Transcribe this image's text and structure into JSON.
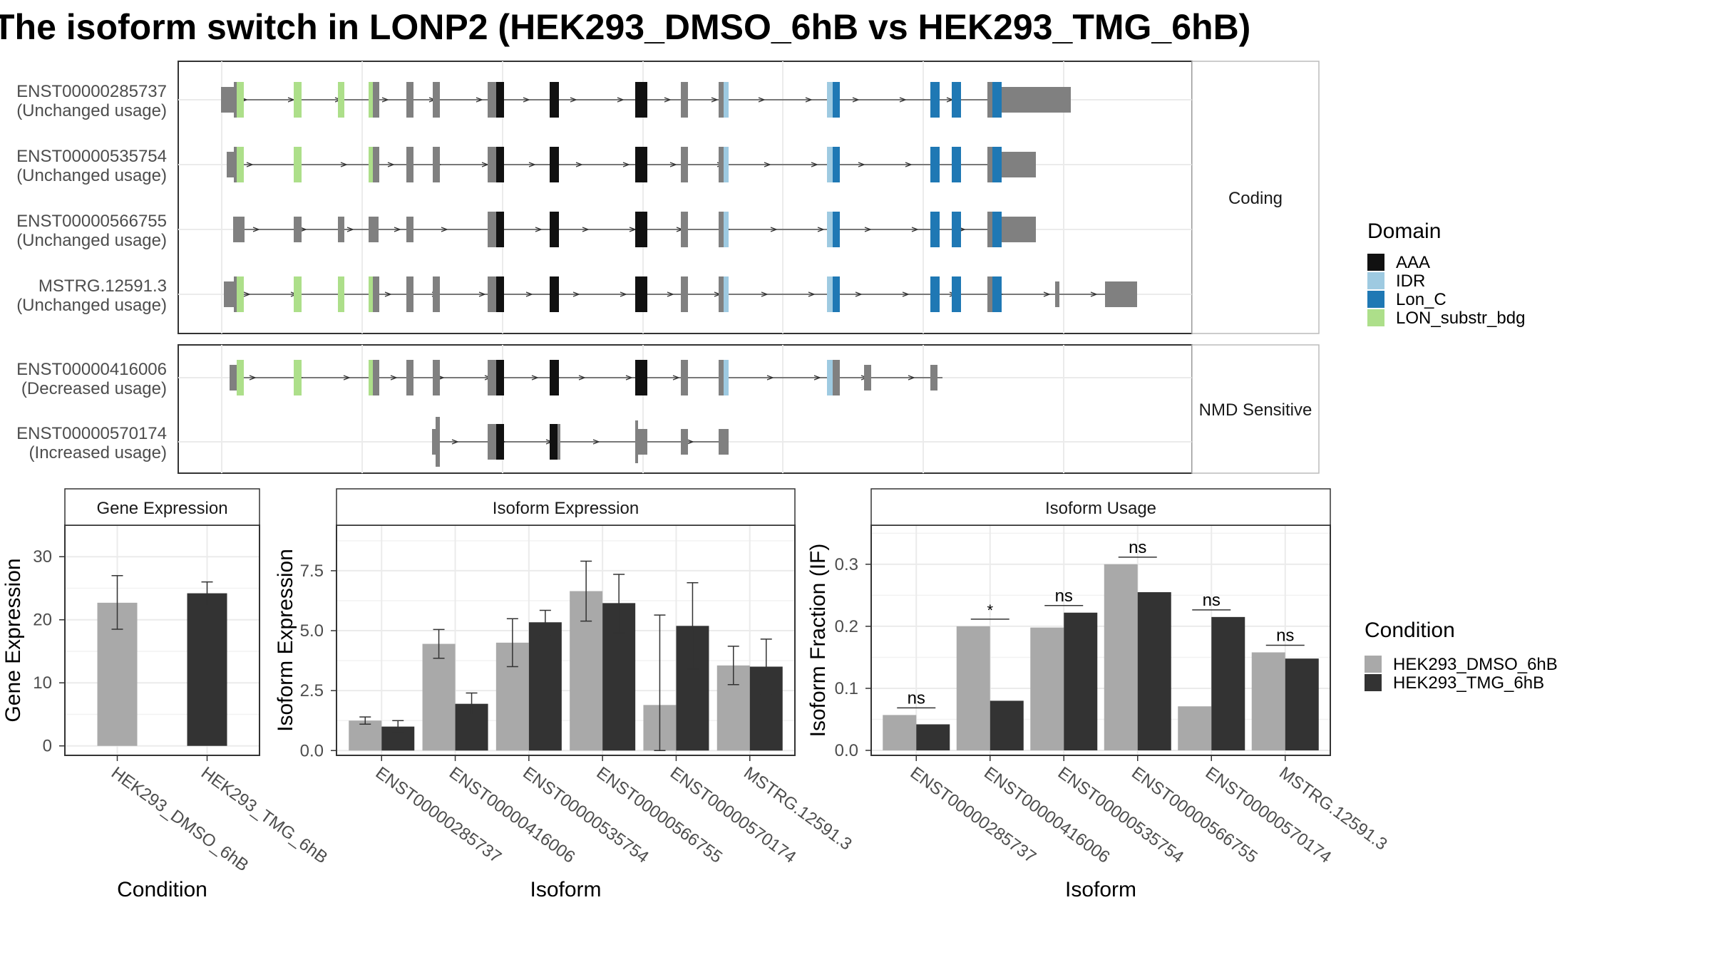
{
  "title": "The isoform switch in LONP2 (HEK293_DMSO_6hB vs HEK293_TMG_6hB)",
  "colors": {
    "AAA": "#111111",
    "IDR": "#9ecae1",
    "Lon_C": "#1f78b4",
    "LON_substr_bdg": "#addf8a",
    "exon": "#808080",
    "DMSO": "#a9a9a9",
    "TMG": "#333333"
  },
  "structure": {
    "panels": [
      {
        "strip": "Coding",
        "isoforms": [
          {
            "id": "ENST00000285737",
            "usage": "(Unchanged usage)",
            "first": "ENST00000285737",
            "first_tall": true,
            "utr3": "u3a"
          },
          {
            "id": "ENST00000535754",
            "usage": "(Unchanged usage)",
            "first": "ENST00000535754",
            "first_tall": true,
            "utr3": "u3b"
          },
          {
            "id": "ENST00000566755",
            "usage": "(Unchanged usage)",
            "first": "ENST00000566755",
            "first_tall": false,
            "utr3": "u3b"
          },
          {
            "id": "MSTRG.12591.3",
            "usage": "(Unchanged usage)",
            "first": "MSTRG.12591.3",
            "first_tall": true,
            "utr3": "u3m"
          }
        ]
      },
      {
        "strip": "NMD Sensitive",
        "isoforms": [
          {
            "id": "ENST00000416006",
            "usage": "(Decreased usage)"
          },
          {
            "id": "ENST00000570174",
            "usage": "(Increased usage)"
          }
        ]
      }
    ],
    "legend": {
      "title": "Domain",
      "items": [
        {
          "label": "AAA",
          "key": "AAA"
        },
        {
          "label": "IDR",
          "key": "IDR"
        },
        {
          "label": "Lon_C",
          "key": "Lon_C"
        },
        {
          "label": "LON_substr_bdg",
          "key": "LON_substr_bdg"
        }
      ]
    }
  },
  "chart_data": [
    {
      "type": "bar",
      "strip": "Gene Expression",
      "xlabel": "Condition",
      "ylabel": "Gene Expression",
      "categories": [
        "HEK293_DMSO_6hB",
        "HEK293_TMG_6hB"
      ],
      "values": [
        22.7,
        24.2
      ],
      "error_low": [
        18.5,
        22.3
      ],
      "error_high": [
        27.0,
        26.0
      ],
      "ylim": [
        -1.5,
        35
      ],
      "yticks": [
        0,
        10,
        20,
        30
      ]
    },
    {
      "type": "bar",
      "strip": "Isoform Expression",
      "xlabel": "Isoform",
      "ylabel": "Isoform Expression",
      "categories": [
        "ENST00000285737",
        "ENST00000416006",
        "ENST00000535754",
        "ENST00000566755",
        "ENST00000570174",
        "MSTRG.12591.3"
      ],
      "series": [
        {
          "name": "HEK293_DMSO_6hB",
          "values": [
            1.25,
            4.45,
            4.5,
            6.65,
            1.9,
            3.55
          ],
          "error_low": [
            1.1,
            3.85,
            3.5,
            5.4,
            0.0,
            2.75
          ],
          "error_high": [
            1.4,
            5.05,
            5.5,
            7.9,
            5.65,
            4.35
          ]
        },
        {
          "name": "HEK293_TMG_6hB",
          "values": [
            1.0,
            1.95,
            5.35,
            6.15,
            5.2,
            3.5
          ],
          "error_low": [
            0.75,
            1.5,
            4.8,
            4.9,
            3.4,
            2.35
          ],
          "error_high": [
            1.25,
            2.4,
            5.85,
            7.35,
            7.0,
            4.65
          ]
        }
      ],
      "ylim": [
        -0.2,
        9.4
      ],
      "yticks": [
        0.0,
        2.5,
        5.0,
        7.5
      ]
    },
    {
      "type": "bar",
      "strip": "Isoform Usage",
      "xlabel": "Isoform",
      "ylabel": "Isoform Fraction (IF)",
      "categories": [
        "ENST00000285737",
        "ENST00000416006",
        "ENST00000535754",
        "ENST00000566755",
        "ENST00000570174",
        "MSTRG.12591.3"
      ],
      "series": [
        {
          "name": "HEK293_DMSO_6hB",
          "values": [
            0.057,
            0.2,
            0.198,
            0.3,
            0.071,
            0.158
          ]
        },
        {
          "name": "HEK293_TMG_6hB",
          "values": [
            0.042,
            0.08,
            0.222,
            0.255,
            0.215,
            0.148
          ]
        }
      ],
      "significance": [
        "ns",
        "*",
        "ns",
        "ns",
        "ns",
        "ns"
      ],
      "ylim": [
        -0.008,
        0.363
      ],
      "yticks": [
        0.0,
        0.1,
        0.2,
        0.3
      ]
    }
  ],
  "condition_legend": {
    "title": "Condition",
    "items": [
      "HEK293_DMSO_6hB",
      "HEK293_TMG_6hB"
    ]
  }
}
